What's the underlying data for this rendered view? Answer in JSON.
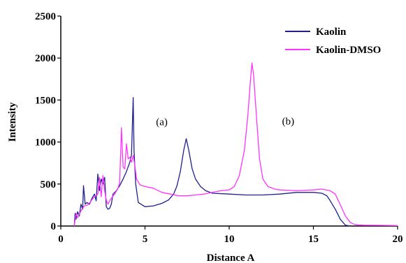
{
  "chart_data": {
    "type": "line",
    "xlabel": "Distance A",
    "ylabel": "Intensity",
    "xlim": [
      0,
      20
    ],
    "ylim": [
      0,
      2500
    ],
    "xticks": [
      0,
      5,
      10,
      15,
      20
    ],
    "yticks": [
      0,
      500,
      1000,
      1500,
      2000,
      2500
    ],
    "grid": false,
    "legend_position": "top-right",
    "annotations": [
      {
        "text": "(a)",
        "x": 6.0,
        "y": 1200
      },
      {
        "text": "(b)",
        "x": 13.5,
        "y": 1210
      }
    ],
    "series": [
      {
        "name": "Kaolin",
        "color": "#1f1f8f",
        "points": [
          [
            0.8,
            0
          ],
          [
            0.85,
            150
          ],
          [
            0.9,
            80
          ],
          [
            1.0,
            170
          ],
          [
            1.1,
            120
          ],
          [
            1.2,
            260
          ],
          [
            1.3,
            200
          ],
          [
            1.35,
            480
          ],
          [
            1.45,
            260
          ],
          [
            1.55,
            280
          ],
          [
            1.7,
            260
          ],
          [
            1.85,
            330
          ],
          [
            2.0,
            380
          ],
          [
            2.1,
            300
          ],
          [
            2.2,
            620
          ],
          [
            2.3,
            420
          ],
          [
            2.4,
            560
          ],
          [
            2.5,
            500
          ],
          [
            2.6,
            580
          ],
          [
            2.7,
            230
          ],
          [
            2.8,
            200
          ],
          [
            2.9,
            210
          ],
          [
            3.0,
            260
          ],
          [
            3.1,
            380
          ],
          [
            3.3,
            420
          ],
          [
            3.5,
            480
          ],
          [
            3.7,
            560
          ],
          [
            3.9,
            650
          ],
          [
            4.1,
            760
          ],
          [
            4.2,
            850
          ],
          [
            4.3,
            1530
          ],
          [
            4.35,
            900
          ],
          [
            4.45,
            500
          ],
          [
            4.6,
            280
          ],
          [
            5.0,
            230
          ],
          [
            5.5,
            240
          ],
          [
            6.0,
            270
          ],
          [
            6.4,
            310
          ],
          [
            6.7,
            380
          ],
          [
            6.9,
            480
          ],
          [
            7.1,
            650
          ],
          [
            7.3,
            900
          ],
          [
            7.45,
            1040
          ],
          [
            7.6,
            900
          ],
          [
            7.8,
            680
          ],
          [
            8.0,
            560
          ],
          [
            8.3,
            470
          ],
          [
            8.6,
            420
          ],
          [
            9.0,
            390
          ],
          [
            10.0,
            380
          ],
          [
            11.0,
            370
          ],
          [
            12.0,
            370
          ],
          [
            13.0,
            380
          ],
          [
            14.0,
            400
          ],
          [
            15.0,
            400
          ],
          [
            15.5,
            390
          ],
          [
            15.8,
            360
          ],
          [
            16.0,
            300
          ],
          [
            16.3,
            200
          ],
          [
            16.6,
            80
          ],
          [
            16.9,
            10
          ],
          [
            17.2,
            0
          ]
        ]
      },
      {
        "name": "Kaolin-DMSO",
        "color": "#ff33ff",
        "points": [
          [
            0.8,
            0
          ],
          [
            0.9,
            150
          ],
          [
            1.0,
            100
          ],
          [
            1.2,
            180
          ],
          [
            1.4,
            240
          ],
          [
            1.6,
            250
          ],
          [
            1.8,
            300
          ],
          [
            2.0,
            350
          ],
          [
            2.2,
            380
          ],
          [
            2.3,
            580
          ],
          [
            2.4,
            350
          ],
          [
            2.5,
            600
          ],
          [
            2.6,
            420
          ],
          [
            2.7,
            310
          ],
          [
            2.8,
            260
          ],
          [
            2.9,
            300
          ],
          [
            3.0,
            330
          ],
          [
            3.2,
            380
          ],
          [
            3.4,
            450
          ],
          [
            3.5,
            520
          ],
          [
            3.6,
            1170
          ],
          [
            3.7,
            700
          ],
          [
            3.8,
            680
          ],
          [
            3.9,
            980
          ],
          [
            4.0,
            800
          ],
          [
            4.1,
            820
          ],
          [
            4.2,
            760
          ],
          [
            4.3,
            840
          ],
          [
            4.4,
            720
          ],
          [
            4.5,
            560
          ],
          [
            4.7,
            490
          ],
          [
            5.0,
            470
          ],
          [
            5.5,
            450
          ],
          [
            6.0,
            400
          ],
          [
            6.5,
            380
          ],
          [
            7.0,
            360
          ],
          [
            7.5,
            360
          ],
          [
            8.0,
            370
          ],
          [
            8.5,
            380
          ],
          [
            9.0,
            400
          ],
          [
            9.5,
            420
          ],
          [
            10.0,
            430
          ],
          [
            10.3,
            470
          ],
          [
            10.6,
            600
          ],
          [
            10.9,
            900
          ],
          [
            11.1,
            1300
          ],
          [
            11.25,
            1700
          ],
          [
            11.35,
            1940
          ],
          [
            11.45,
            1800
          ],
          [
            11.6,
            1350
          ],
          [
            11.8,
            800
          ],
          [
            12.0,
            560
          ],
          [
            12.3,
            470
          ],
          [
            12.7,
            440
          ],
          [
            13.0,
            430
          ],
          [
            14.0,
            420
          ],
          [
            15.0,
            430
          ],
          [
            15.5,
            440
          ],
          [
            16.0,
            420
          ],
          [
            16.3,
            380
          ],
          [
            16.6,
            250
          ],
          [
            16.9,
            120
          ],
          [
            17.2,
            40
          ],
          [
            17.5,
            15
          ],
          [
            18.0,
            10
          ],
          [
            19.0,
            8
          ],
          [
            20.0,
            5
          ]
        ]
      }
    ]
  }
}
